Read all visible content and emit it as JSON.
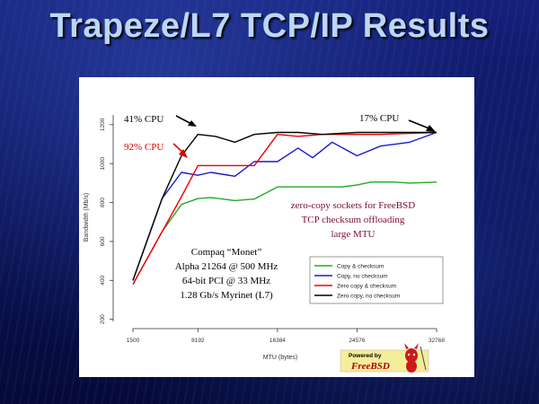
{
  "slide": {
    "title": "Trapeze/L7 TCP/IP Results"
  },
  "chart_data": {
    "type": "line",
    "xlabel": "MTU (bytes)",
    "ylabel": "Bandwidth (Mb/s)",
    "x_ticks": [
      1500,
      8192,
      16384,
      24576,
      32768
    ],
    "x_tick_labels": [
      "1500",
      "8192",
      "16384",
      "24576",
      "32768"
    ],
    "xlim": [
      1500,
      32768
    ],
    "y_ticks": [
      200,
      400,
      600,
      800,
      1000,
      1200
    ],
    "y_tick_labels": [
      "200",
      "400",
      "600",
      "800",
      "1000",
      "1200"
    ],
    "ylim": [
      180,
      1250
    ],
    "grid": false,
    "legend_position": "lower-right",
    "series": [
      {
        "name": "Copy & checksum",
        "color": "#22aa22",
        "points": [
          [
            1500,
            380
          ],
          [
            4500,
            650
          ],
          [
            6500,
            790
          ],
          [
            8192,
            820
          ],
          [
            9500,
            825
          ],
          [
            12000,
            810
          ],
          [
            14000,
            818
          ],
          [
            16384,
            880
          ],
          [
            18500,
            880
          ],
          [
            21000,
            880
          ],
          [
            23000,
            880
          ],
          [
            24576,
            890
          ],
          [
            26000,
            905
          ],
          [
            28500,
            905
          ],
          [
            30000,
            900
          ],
          [
            32768,
            905
          ]
        ]
      },
      {
        "name": "Copy, no checksum",
        "color": "#1a1acc",
        "points": [
          [
            1500,
            400
          ],
          [
            4500,
            820
          ],
          [
            6500,
            955
          ],
          [
            8192,
            940
          ],
          [
            9500,
            955
          ],
          [
            12000,
            935
          ],
          [
            14000,
            1010
          ],
          [
            16384,
            1010
          ],
          [
            18500,
            1080
          ],
          [
            20000,
            1030
          ],
          [
            22000,
            1110
          ],
          [
            24576,
            1040
          ],
          [
            27000,
            1090
          ],
          [
            30000,
            1110
          ],
          [
            32768,
            1160
          ]
        ]
      },
      {
        "name": "Zero copy & checksum",
        "color": "#ee0000",
        "points": [
          [
            1500,
            380
          ],
          [
            4500,
            650
          ],
          [
            6500,
            830
          ],
          [
            8192,
            990
          ],
          [
            10000,
            990
          ],
          [
            12000,
            990
          ],
          [
            14000,
            990
          ],
          [
            16384,
            1150
          ],
          [
            18500,
            1140
          ],
          [
            21000,
            1150
          ],
          [
            23000,
            1150
          ],
          [
            24576,
            1150
          ],
          [
            27000,
            1150
          ],
          [
            30000,
            1155
          ],
          [
            32768,
            1160
          ]
        ]
      },
      {
        "name": "Zero copy, no checksum",
        "color": "#000000",
        "points": [
          [
            1500,
            400
          ],
          [
            4500,
            820
          ],
          [
            6500,
            1040
          ],
          [
            8192,
            1150
          ],
          [
            10000,
            1140
          ],
          [
            12000,
            1110
          ],
          [
            14000,
            1150
          ],
          [
            16384,
            1160
          ],
          [
            18500,
            1160
          ],
          [
            21000,
            1150
          ],
          [
            24576,
            1160
          ],
          [
            27000,
            1160
          ],
          [
            30000,
            1160
          ],
          [
            32768,
            1160
          ]
        ]
      }
    ],
    "annotations": {
      "cpu_41": "41% CPU",
      "cpu_17": "17% CPU",
      "cpu_92": "92% CPU",
      "features": [
        "zero-copy sockets for FreeBSD",
        "TCP checksum offloading",
        "large MTU"
      ],
      "system": [
        "Compaq “Monet”",
        "Alpha 21264 @ 500 MHz",
        "64-bit PCI @ 33 MHz",
        "1.28 Gb/s Myrinet (L7)"
      ]
    },
    "logo": {
      "line1": "Powered by",
      "line2": "FreeBSD"
    }
  }
}
